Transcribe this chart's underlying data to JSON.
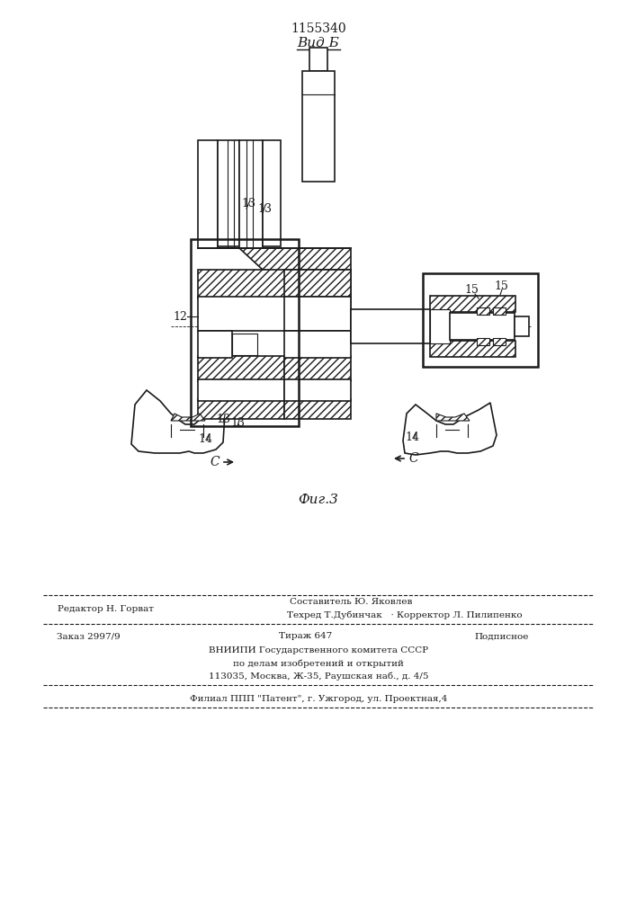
{
  "patent_number": "1155340",
  "title_view": "Вид Б",
  "figure_label": "Фиг.3",
  "bg_color": "#ffffff",
  "line_color": "#1a1a1a",
  "fig_width": 7.07,
  "fig_height": 10.0,
  "footer": {
    "sestavitel": "Составитель Ю. Яковлев",
    "tehred": "Техред Т.Дубинчак   · Корректор Л. Пилипенко",
    "redaktor": "Редактор Н. Горват",
    "zakaz": "Заказ 2997/9",
    "tirazh": "Тираж 647",
    "podpisnoe": "Подписное",
    "vniipи": "ВНИИПИ Государственного комитета СССР",
    "po_delam": "по делам изобретений и открытий",
    "address": "113035, Москва, Ж-35, Раушская наб., д. 4/5",
    "filial": "Филиал ППП \"Патент\", г. Ужгород, ул. Проектная,4"
  }
}
